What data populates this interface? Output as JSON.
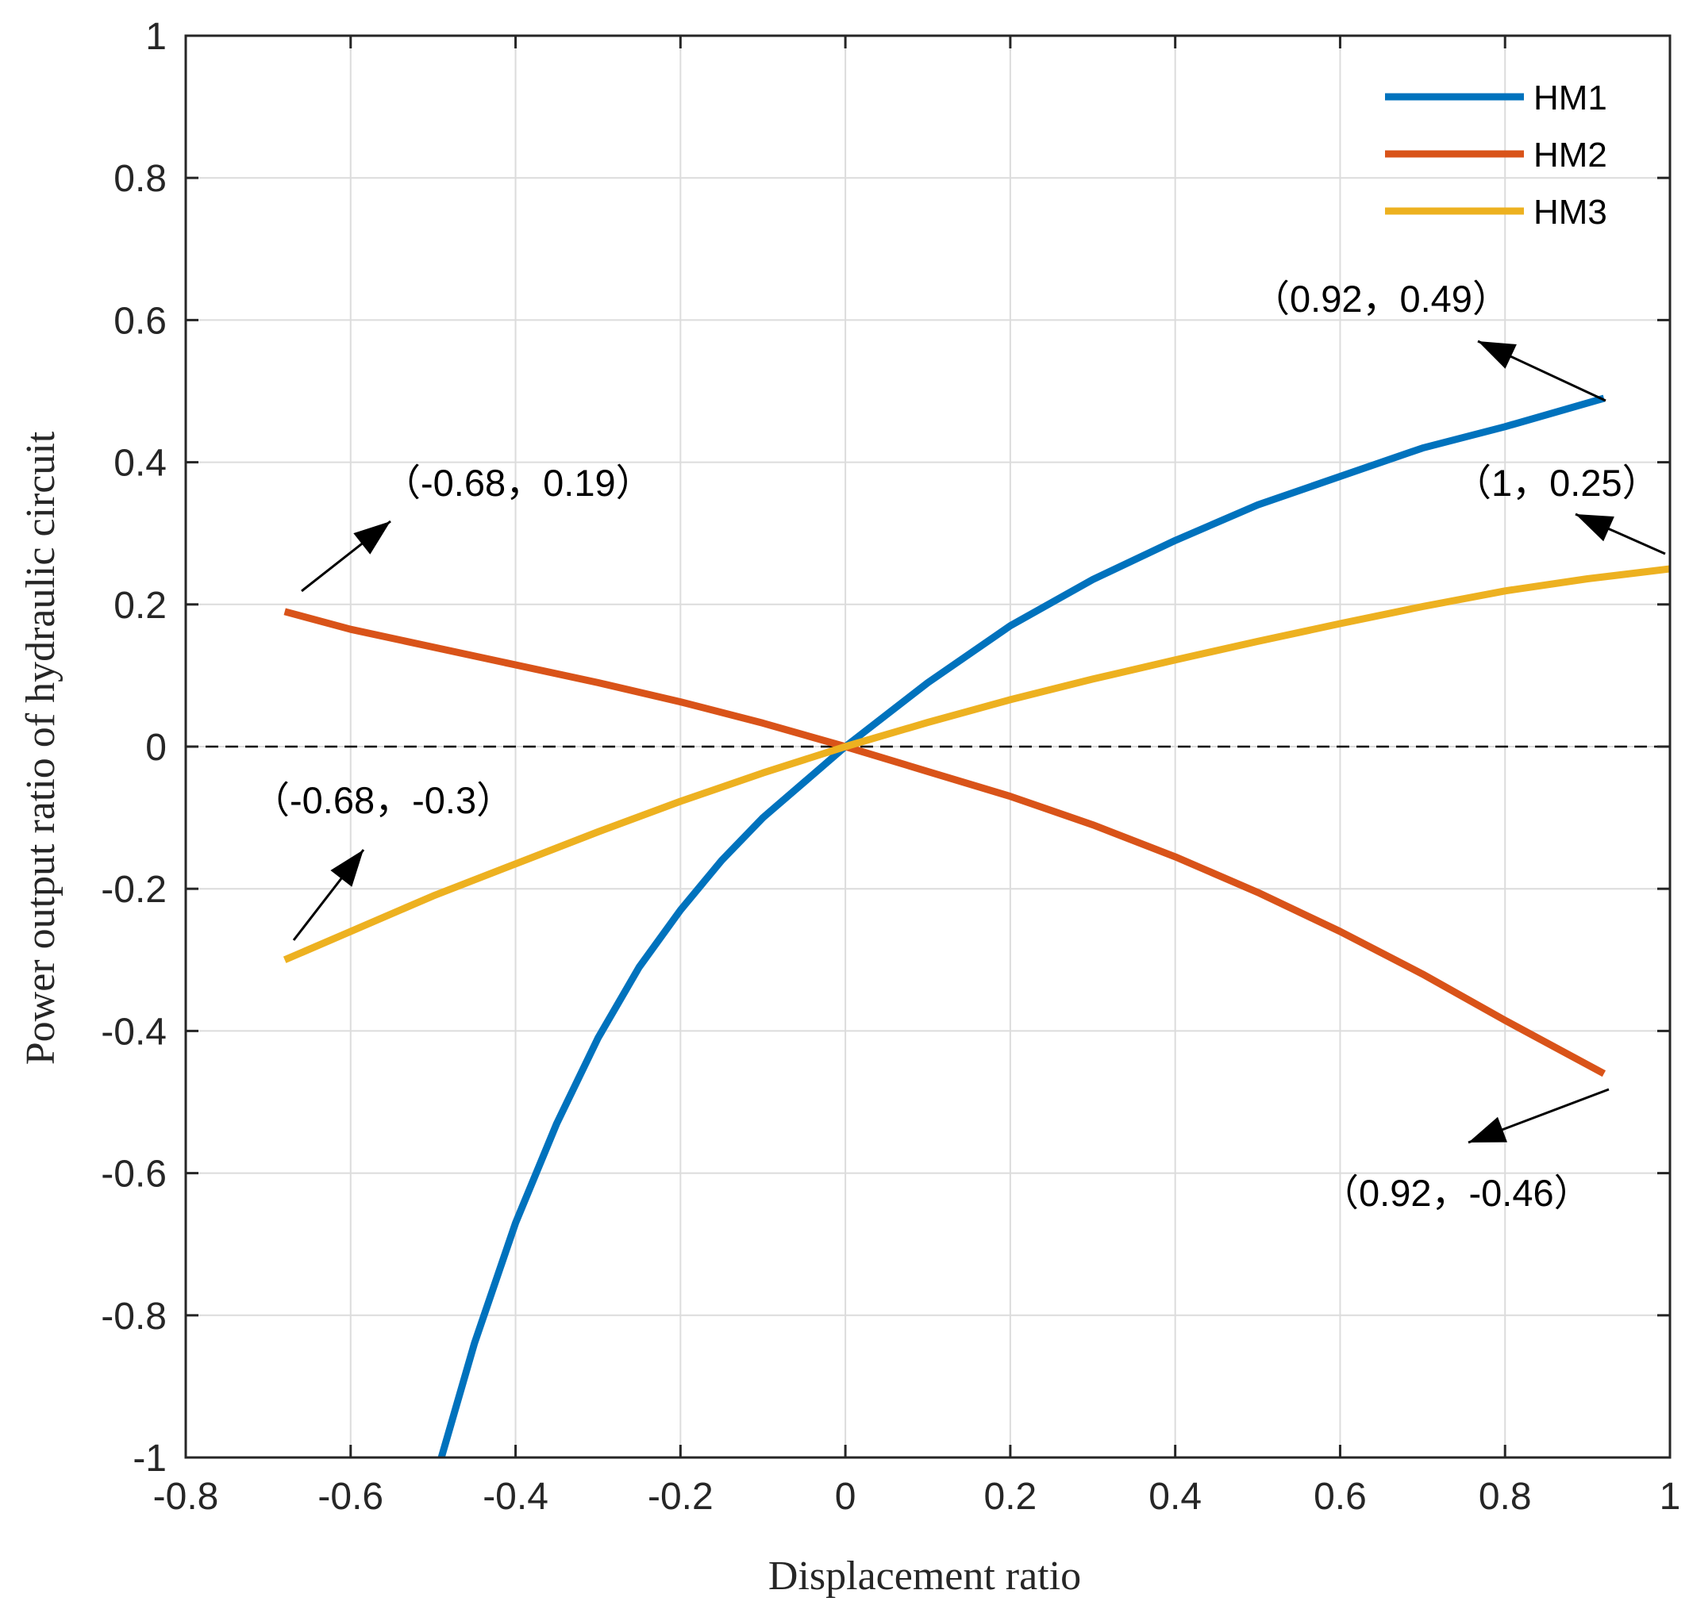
{
  "chart_data": {
    "type": "line",
    "title": "",
    "xlabel": "Displacement ratio",
    "ylabel": "Power output ratio of hydraulic circuit",
    "xlim": [
      -0.8,
      1
    ],
    "ylim": [
      -1,
      1
    ],
    "grid": true,
    "legend_position": "top-right",
    "x_ticks": [
      -0.8,
      -0.6,
      -0.4,
      -0.2,
      0,
      0.2,
      0.4,
      0.6,
      0.8,
      1
    ],
    "x_tick_labels": [
      "-0.8",
      "-0.6",
      "-0.4",
      "-0.2",
      "0",
      "0.2",
      "0.4",
      "0.6",
      "0.8",
      "1"
    ],
    "y_ticks": [
      -1,
      -0.8,
      -0.6,
      -0.4,
      -0.2,
      0,
      0.2,
      0.4,
      0.6,
      0.8,
      1
    ],
    "y_tick_labels": [
      "-1",
      "-0.8",
      "-0.6",
      "-0.4",
      "-0.2",
      "0",
      "0.2",
      "0.4",
      "0.6",
      "0.8",
      "1"
    ],
    "reference_line": {
      "y": 0,
      "style": "dashed",
      "color": "#000000"
    },
    "series": [
      {
        "name": "HM1",
        "color": "#0072BD",
        "x": [
          -0.49,
          -0.45,
          -0.4,
          -0.35,
          -0.3,
          -0.25,
          -0.2,
          -0.15,
          -0.1,
          -0.05,
          0,
          0.1,
          0.2,
          0.3,
          0.4,
          0.5,
          0.6,
          0.7,
          0.8,
          0.92
        ],
        "y": [
          -1.0,
          -0.84,
          -0.67,
          -0.53,
          -0.41,
          -0.31,
          -0.23,
          -0.16,
          -0.1,
          -0.05,
          0,
          0.09,
          0.17,
          0.235,
          0.29,
          0.34,
          0.38,
          0.42,
          0.45,
          0.49
        ]
      },
      {
        "name": "HM2",
        "color": "#D95319",
        "x": [
          -0.68,
          -0.6,
          -0.5,
          -0.4,
          -0.3,
          -0.2,
          -0.1,
          0,
          0.1,
          0.2,
          0.3,
          0.4,
          0.5,
          0.6,
          0.7,
          0.8,
          0.92
        ],
        "y": [
          0.19,
          0.165,
          0.14,
          0.115,
          0.09,
          0.063,
          0.033,
          0,
          -0.035,
          -0.07,
          -0.11,
          -0.155,
          -0.205,
          -0.26,
          -0.32,
          -0.385,
          -0.46
        ]
      },
      {
        "name": "HM3",
        "color": "#EDB120",
        "x": [
          -0.68,
          -0.6,
          -0.5,
          -0.4,
          -0.3,
          -0.2,
          -0.1,
          0,
          0.1,
          0.2,
          0.3,
          0.4,
          0.5,
          0.6,
          0.7,
          0.8,
          0.9,
          1
        ],
        "y": [
          -0.3,
          -0.26,
          -0.21,
          -0.165,
          -0.12,
          -0.077,
          -0.037,
          0,
          0.034,
          0.066,
          0.095,
          0.122,
          0.148,
          0.173,
          0.197,
          0.219,
          0.236,
          0.25
        ]
      }
    ],
    "annotations": [
      {
        "text": "（0.92，0.49）",
        "point": [
          0.92,
          0.49
        ]
      },
      {
        "text": "（-0.68，0.19）",
        "point": [
          -0.68,
          0.19
        ]
      },
      {
        "text": "（1，0.25）",
        "point": [
          1,
          0.25
        ]
      },
      {
        "text": "（-0.68，-0.3）",
        "point": [
          -0.68,
          -0.3
        ]
      },
      {
        "text": "（0.92，-0.46）",
        "point": [
          0.92,
          -0.46
        ]
      }
    ]
  }
}
